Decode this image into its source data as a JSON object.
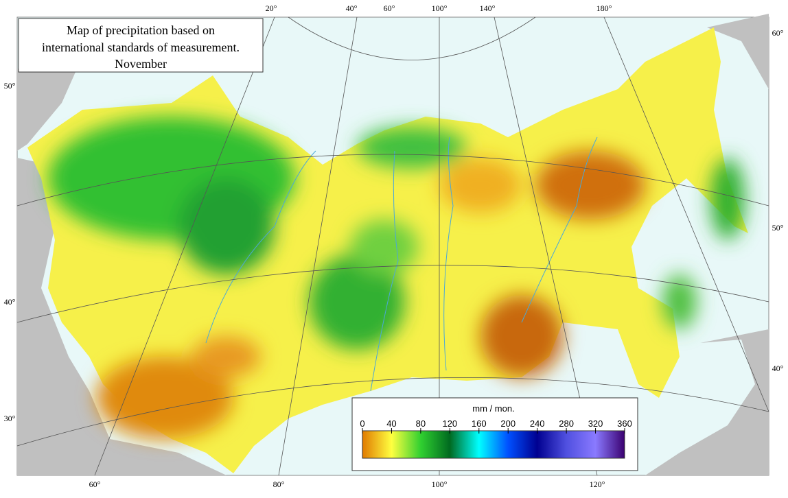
{
  "title": [
    "Map of precipitation based on",
    "international standards of measurement.",
    "November"
  ],
  "graticule_labels": {
    "top": [
      "20°",
      "40°",
      "60°",
      "100°",
      "140°",
      "180°"
    ],
    "left": [
      "50°",
      "40°",
      "30°"
    ],
    "right": [
      "60°",
      "50°",
      "40°"
    ],
    "bottom": [
      "60°",
      "80°",
      "100°",
      "120°"
    ]
  },
  "legend": {
    "unit": "mm / mon.",
    "ticks": [
      0,
      40,
      80,
      120,
      160,
      200,
      240,
      280,
      320,
      360
    ],
    "colors": [
      "#e07a00",
      "#ffff40",
      "#30d030",
      "#006a20",
      "#00ffff",
      "#0050ff",
      "#000090",
      "#5050e0",
      "#8a7aff",
      "#3a0070"
    ]
  }
}
